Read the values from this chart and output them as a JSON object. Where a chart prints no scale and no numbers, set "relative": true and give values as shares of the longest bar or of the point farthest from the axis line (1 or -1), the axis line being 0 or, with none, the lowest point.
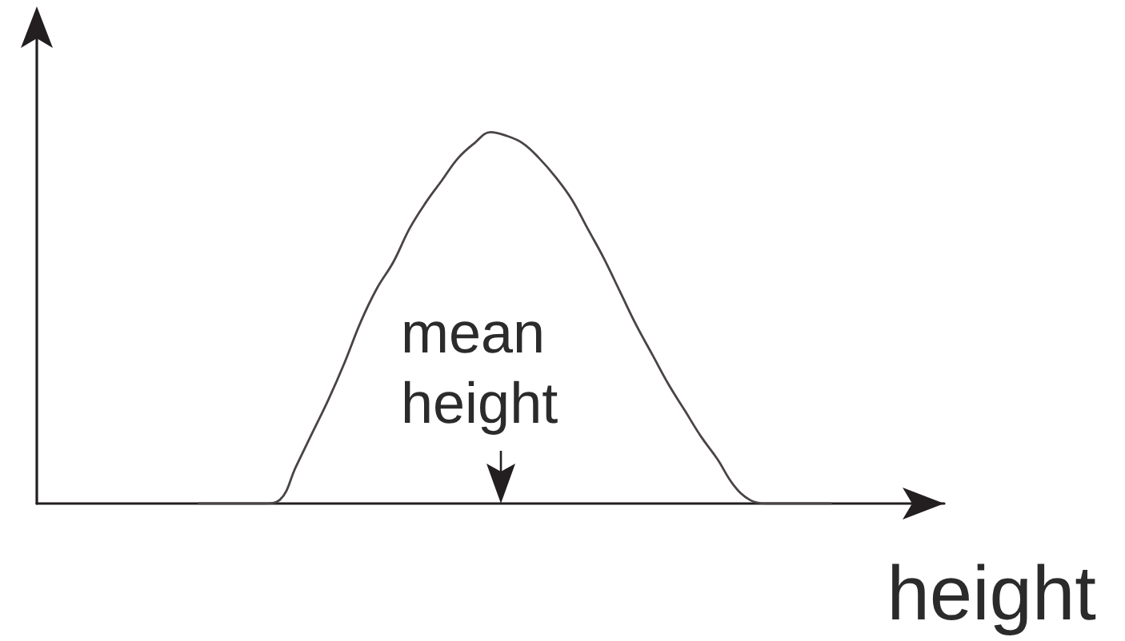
{
  "chart_data": {
    "type": "line",
    "relative": true,
    "xlabel": "height",
    "annotations": [
      "mean height"
    ],
    "marker": "none",
    "color": "#4a4444",
    "categories": [
      null,
      null,
      null,
      null,
      null,
      null,
      null,
      null,
      null,
      null,
      null,
      null,
      null,
      null,
      null,
      null,
      null,
      null,
      null,
      null,
      null,
      null,
      null,
      null,
      null,
      null,
      null,
      null,
      null,
      null,
      null,
      null,
      null,
      null,
      null,
      null,
      null,
      null,
      null,
      null,
      null,
      null,
      null,
      null,
      null,
      null,
      null,
      null,
      null,
      null,
      null,
      null,
      null,
      null,
      null,
      null,
      null
    ],
    "values": [
      null,
      null,
      null,
      null,
      null,
      null,
      null,
      null,
      null,
      null,
      0,
      0,
      0,
      0,
      0,
      0.01,
      0.1,
      0.19,
      0.28,
      0.38,
      0.49,
      0.58,
      0.65,
      0.74,
      0.81,
      0.87,
      0.93,
      0.97,
      1,
      0.99,
      0.97,
      0.93,
      0.88,
      0.82,
      0.74,
      0.66,
      0.57,
      0.48,
      0.4,
      0.32,
      0.25,
      0.18,
      0.12,
      0.05,
      0.01,
      0,
      0,
      0,
      0,
      0,
      null,
      null,
      null,
      null,
      null,
      null,
      null
    ]
  }
}
